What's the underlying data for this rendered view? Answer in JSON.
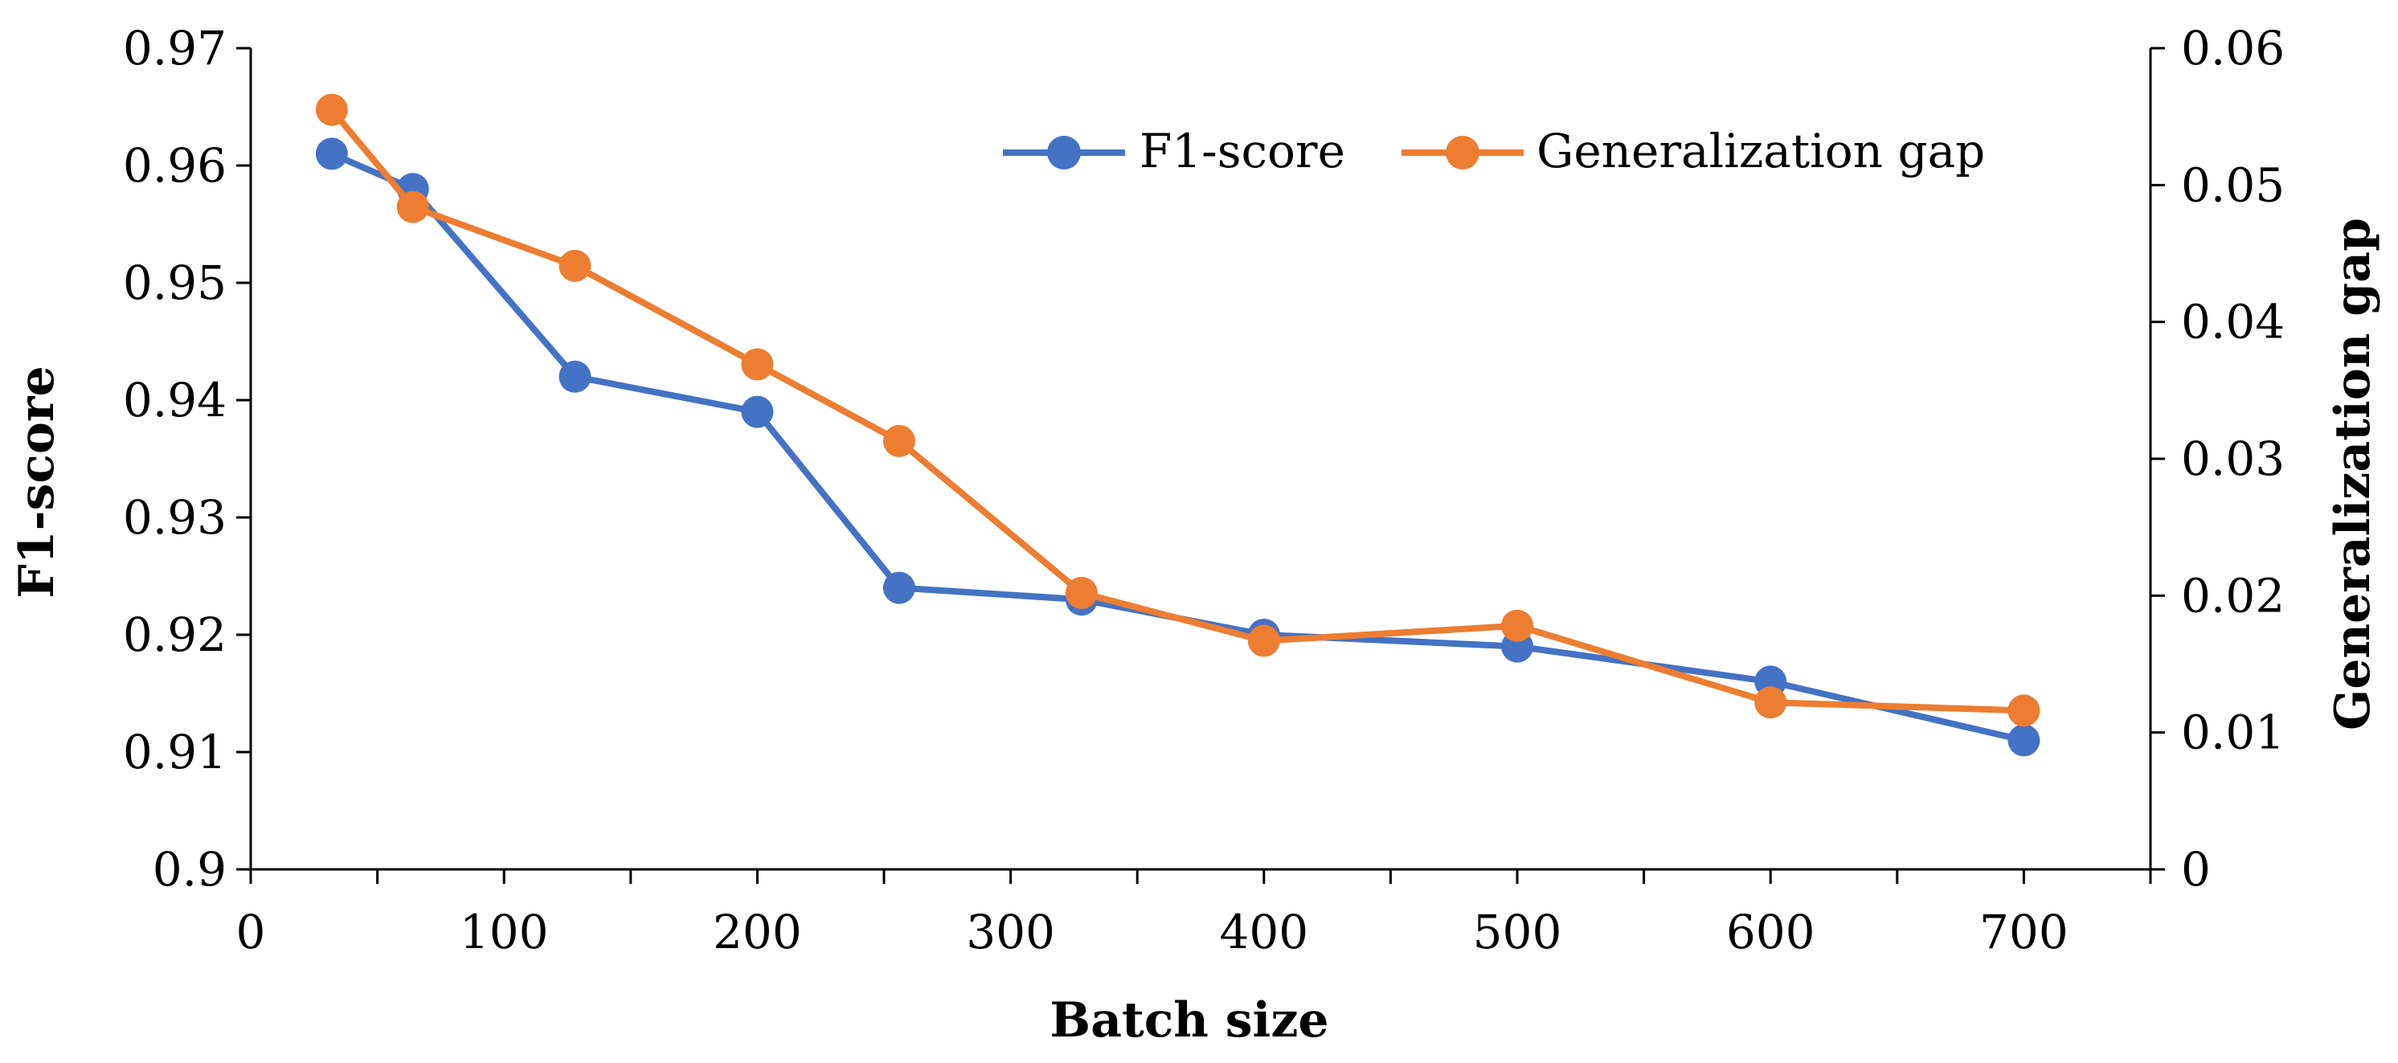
{
  "chart_data": {
    "type": "line",
    "xlabel": "Batch size",
    "ylabel": "F1-score",
    "y2label": "Generalization gap",
    "xlim": [
      0,
      750
    ],
    "ylim": [
      0.9,
      0.97
    ],
    "y2lim": [
      0,
      0.06
    ],
    "x_ticks": [
      0,
      100,
      200,
      300,
      400,
      500,
      600,
      700
    ],
    "x_tick_labels": [
      "0",
      "100",
      "200",
      "300",
      "400",
      "500",
      "600",
      "700"
    ],
    "y_ticks": [
      0.9,
      0.91,
      0.92,
      0.93,
      0.94,
      0.95,
      0.96,
      0.97
    ],
    "y_tick_labels": [
      "0.9",
      "0.91",
      "0.92",
      "0.93",
      "0.94",
      "0.95",
      "0.96",
      "0.97"
    ],
    "y2_ticks": [
      0,
      0.01,
      0.02,
      0.03,
      0.04,
      0.05,
      0.06
    ],
    "y2_tick_labels": [
      "0",
      "0.01",
      "0.02",
      "0.03",
      "0.04",
      "0.05",
      "0.06"
    ],
    "legend_position": "top-right",
    "grid": false,
    "series": [
      {
        "name": "F1-score",
        "axis": "left",
        "color": "#4472C4",
        "x": [
          32,
          64,
          128,
          200,
          256,
          328,
          400,
          500,
          600,
          700
        ],
        "values": [
          0.961,
          0.958,
          0.942,
          0.939,
          0.924,
          0.923,
          0.92,
          0.919,
          0.916,
          0.911
        ]
      },
      {
        "name": "Generalization gap",
        "axis": "right",
        "color": "#ED7D31",
        "x": [
          32,
          64,
          128,
          200,
          256,
          328,
          400,
          500,
          600,
          700
        ],
        "values": [
          0.0555,
          0.0484,
          0.0441,
          0.0369,
          0.0313,
          0.0202,
          0.0167,
          0.0178,
          0.0122,
          0.0116
        ]
      }
    ]
  }
}
